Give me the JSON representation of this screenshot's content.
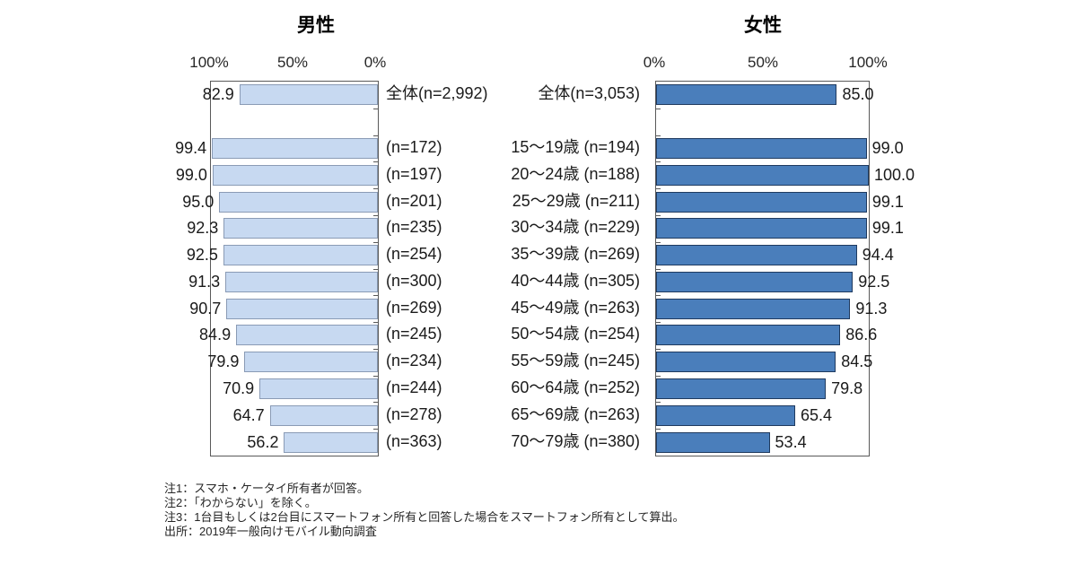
{
  "chart_data": {
    "type": "bar",
    "layout": "population-pyramid",
    "grid": false,
    "panels": [
      {
        "title": "男性",
        "side": "left",
        "axis_ticks": [
          "100%",
          "50%",
          "0%"
        ],
        "value_axis_reversed": true,
        "xlim": [
          0,
          100
        ],
        "bar_color": "#C7D9F1",
        "bar_border_color": "#8A9BB5",
        "value_label_position": "outside-left"
      },
      {
        "title": "女性",
        "side": "right",
        "axis_ticks": [
          "0%",
          "50%",
          "100%"
        ],
        "value_axis_reversed": false,
        "xlim": [
          0,
          100
        ],
        "bar_color": "#4A7EBB",
        "bar_border_color": "#1F3A5F",
        "value_label_position": "outside-right"
      }
    ],
    "rows": [
      {
        "left_label": "全体(n=2,992)",
        "right_label": "全体(n=3,053)",
        "male": 82.9,
        "female": 85.0,
        "gap_after": true
      },
      {
        "left_label": "(n=172)",
        "right_label": "15〜19歳 (n=194)",
        "male": 99.4,
        "female": 99.0
      },
      {
        "left_label": "(n=197)",
        "right_label": "20〜24歳 (n=188)",
        "male": 99.0,
        "female": 100.0
      },
      {
        "left_label": "(n=201)",
        "right_label": "25〜29歳 (n=211)",
        "male": 95.0,
        "female": 99.1
      },
      {
        "left_label": "(n=235)",
        "right_label": "30〜34歳 (n=229)",
        "male": 92.3,
        "female": 99.1
      },
      {
        "left_label": "(n=254)",
        "right_label": "35〜39歳 (n=269)",
        "male": 92.5,
        "female": 94.4
      },
      {
        "left_label": "(n=300)",
        "right_label": "40〜44歳 (n=305)",
        "male": 91.3,
        "female": 92.5
      },
      {
        "left_label": "(n=269)",
        "right_label": "45〜49歳 (n=263)",
        "male": 90.7,
        "female": 91.3
      },
      {
        "left_label": "(n=245)",
        "right_label": "50〜54歳 (n=254)",
        "male": 84.9,
        "female": 86.6
      },
      {
        "left_label": "(n=234)",
        "right_label": "55〜59歳 (n=245)",
        "male": 79.9,
        "female": 84.5
      },
      {
        "left_label": "(n=244)",
        "right_label": "60〜64歳 (n=252)",
        "male": 70.9,
        "female": 79.8
      },
      {
        "left_label": "(n=278)",
        "right_label": "65〜69歳 (n=263)",
        "male": 64.7,
        "female": 65.4
      },
      {
        "left_label": "(n=363)",
        "right_label": "70〜79歳 (n=380)",
        "male": 56.2,
        "female": 53.4
      }
    ],
    "notes": [
      "注1：スマホ・ケータイ所有者が回答。",
      "注2：「わからない」を除く。",
      "注3：1台目もしくは2台目にスマートフォン所有と回答した場合をスマートフォン所有として算出。",
      "出所：2019年一般向けモバイル動向調査"
    ]
  }
}
